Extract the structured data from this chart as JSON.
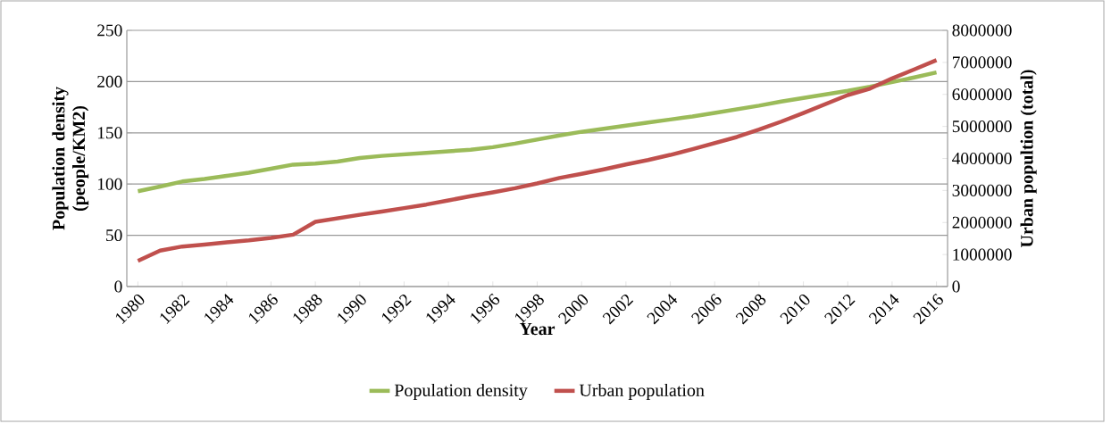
{
  "chart_data": {
    "type": "line",
    "xlabel": "Year",
    "ylabel": "Population density (people/KM2)",
    "y2label": "Urban popultion (total)",
    "x": [
      1980,
      1981,
      1982,
      1983,
      1984,
      1985,
      1986,
      1987,
      1988,
      1989,
      1990,
      1991,
      1992,
      1993,
      1994,
      1995,
      1996,
      1997,
      1998,
      1999,
      2000,
      2001,
      2002,
      2003,
      2004,
      2005,
      2006,
      2007,
      2008,
      2009,
      2010,
      2011,
      2012,
      2013,
      2014,
      2015,
      2016
    ],
    "series": [
      {
        "name": "Population density",
        "color": "#9bbb59",
        "values": [
          93,
          97.5,
          102.5,
          105,
          108,
          111,
          115,
          119,
          120,
          122,
          125.5,
          127.5,
          129,
          130.5,
          132,
          133.5,
          136,
          139.5,
          143.5,
          147.5,
          151,
          154,
          157,
          160,
          163,
          166,
          169.5,
          173,
          176.5,
          180.5,
          184,
          187.5,
          191,
          195,
          199.5,
          204,
          209
        ]
      },
      {
        "name": "Urban population",
        "color": "#c0504d",
        "axis": "y2",
        "values": [
          800000,
          1120000,
          1250000,
          1310000,
          1380000,
          1440000,
          1520000,
          1620000,
          2020000,
          2130000,
          2240000,
          2340000,
          2450000,
          2560000,
          2690000,
          2820000,
          2940000,
          3070000,
          3220000,
          3390000,
          3520000,
          3660000,
          3810000,
          3950000,
          4110000,
          4290000,
          4480000,
          4670000,
          4900000,
          5150000,
          5420000,
          5700000,
          5980000,
          6180000,
          6500000,
          6780000,
          7070000
        ]
      }
    ],
    "xlim": [
      1979.5,
      2016.5
    ],
    "xticks": [
      1980,
      1982,
      1984,
      1986,
      1988,
      1990,
      1992,
      1994,
      1996,
      1998,
      2000,
      2002,
      2004,
      2006,
      2008,
      2010,
      2012,
      2014,
      2016
    ],
    "ylim": [
      0,
      250
    ],
    "yticks": [
      0,
      50,
      100,
      150,
      200,
      250
    ],
    "y2lim": [
      0,
      8000000
    ],
    "y2ticks": [
      0,
      1000000,
      2000000,
      3000000,
      4000000,
      5000000,
      6000000,
      7000000,
      8000000
    ],
    "grid": "y",
    "legend": "bottom",
    "marker": "none",
    "line_style": "solid"
  }
}
